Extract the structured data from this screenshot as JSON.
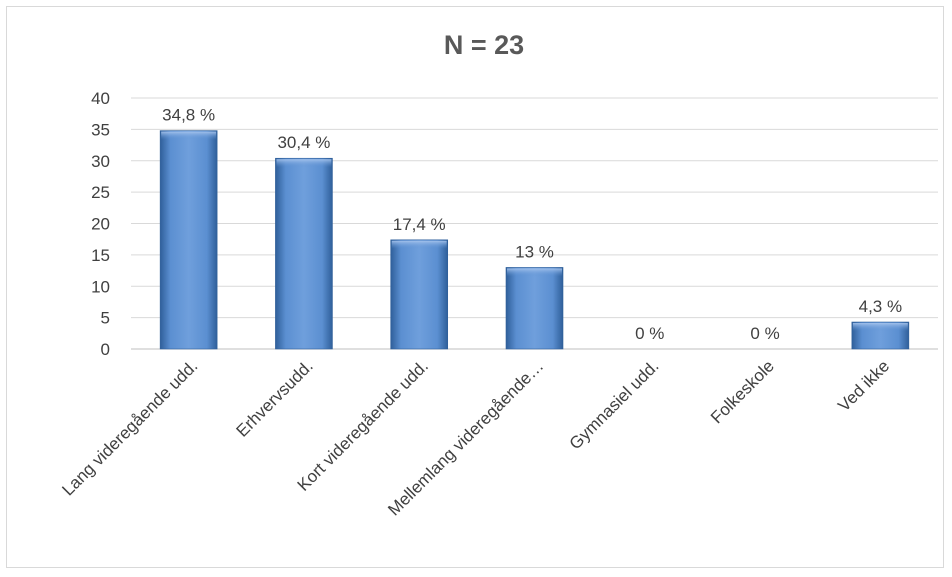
{
  "chart_data": {
    "type": "bar",
    "title": "N = 23",
    "categories": [
      "Lang videregående udd.",
      "Erhvervsudd.",
      "Kort videregående udd.",
      "Mellemlang videregående…",
      "Gymnasiel udd.",
      "Folkeskole",
      "Ved ikke"
    ],
    "values": [
      34.8,
      30.4,
      17.4,
      13,
      0,
      0,
      4.3
    ],
    "data_labels": [
      "34,8 %",
      "30,4 %",
      "17,4 %",
      "13 %",
      "0 %",
      "0 %",
      "4,3 %"
    ],
    "yticks": [
      "0",
      "5",
      "10",
      "15",
      "20",
      "25",
      "30",
      "35",
      "40"
    ],
    "ylim": [
      0,
      40
    ],
    "grid": true,
    "legend": "none",
    "bar_color": "#4f81bd",
    "bar_highlight": "#7aa6de",
    "bar_shadow": "#2f5f9a"
  }
}
